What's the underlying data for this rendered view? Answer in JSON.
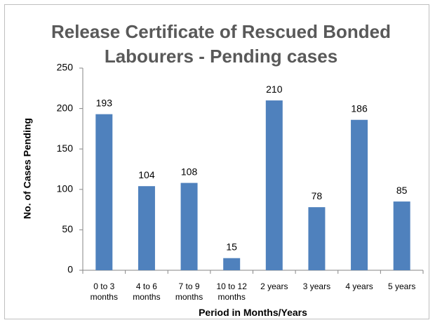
{
  "chart_data": {
    "type": "bar",
    "title": "Release Certificate of Rescued Bonded Labourers -  Pending cases",
    "xlabel": "Period  in Months/Years",
    "ylabel": "No. of Cases Pending",
    "categories": [
      "0 to 3 months",
      "4 to 6 months",
      "7 to 9 months",
      "10 to 12 months",
      "2 years",
      "3 years",
      "4 years",
      "5 years"
    ],
    "values": [
      193,
      104,
      108,
      15,
      210,
      78,
      186,
      85
    ],
    "color": "#4f81bd",
    "ylim": [
      0,
      250
    ],
    "yticks": [
      0,
      50,
      100,
      150,
      200,
      250
    ],
    "grid": false
  }
}
